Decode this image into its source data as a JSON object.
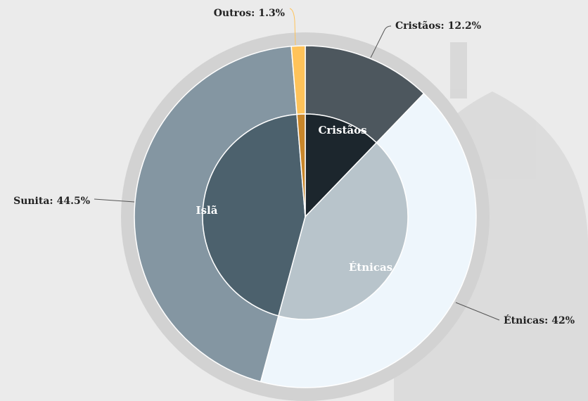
{
  "chart_data": {
    "type": "sunburst",
    "outer": {
      "categories": [
        "Cristãos",
        "Étnicas",
        "Sunita",
        "Outros"
      ],
      "values": [
        12.2,
        42,
        44.5,
        1.3
      ],
      "value_labels": [
        "12.2%",
        "42%",
        "44.5%",
        "1.3%"
      ],
      "colors": [
        "#4d575e",
        "#eef6fc",
        "#8496a2",
        "#ffc35a"
      ]
    },
    "inner": {
      "categories": [
        "Cristãos",
        "Étnicas",
        "Islã",
        null
      ],
      "values": [
        12.2,
        42,
        44.5,
        1.3
      ],
      "colors": [
        "#1c262d",
        "#b8c4cb",
        "#4c616d",
        "#c8862a"
      ]
    }
  }
}
